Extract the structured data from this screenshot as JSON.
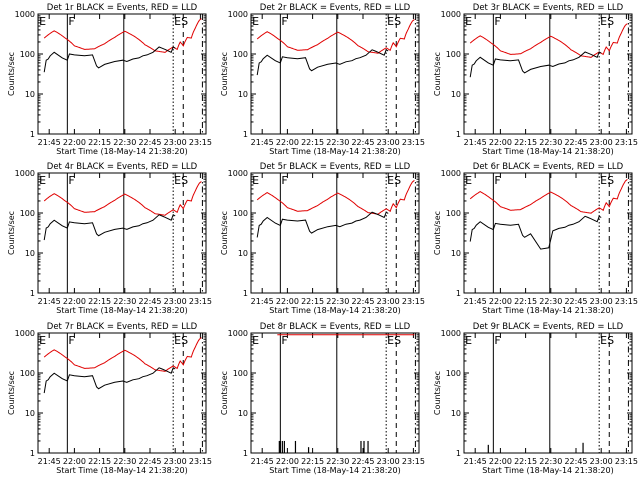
{
  "chart_data": {
    "type": "line",
    "xlabel": "Start Time (18-May-14 21:38:20)",
    "ylabel": "Counts/sec",
    "x_tick_labels": [
      "21:45",
      "22:00",
      "22:15",
      "22:30",
      "22:45",
      "23:00",
      "23:15"
    ],
    "x_ticks_min": [
      21.75,
      22.0,
      22.25,
      22.5,
      22.75,
      23.0,
      23.25
    ],
    "xlim_hours": [
      21.638889,
      23.305556
    ],
    "y_tick_labels": [
      "1",
      "10",
      "100",
      "1000"
    ],
    "y_scale": "log",
    "ylim": [
      1,
      1000
    ],
    "series_labels": {
      "black": "BLACK = Events",
      "red": "RED = LLD"
    },
    "markers": [
      {
        "label": "E",
        "x": 21.64,
        "style": "none"
      },
      {
        "label": "F",
        "x": 21.93,
        "style": "solid"
      },
      {
        "label": "",
        "x": 22.49,
        "style": "solid"
      },
      {
        "label": "ES",
        "x": 22.98,
        "style": "dotted"
      },
      {
        "label": "",
        "x": 23.08,
        "style": "dashed"
      },
      {
        "label": "",
        "x": 23.27,
        "style": "dashdot"
      }
    ],
    "panels": [
      {
        "title": "Det 1r BLACK = Events, RED = LLD",
        "red_scale": 1.0,
        "black_scale": 1.0,
        "black_gap": false,
        "spike_only": false,
        "show_red": true
      },
      {
        "title": "Det 2r BLACK = Events, RED = LLD",
        "red_scale": 0.95,
        "black_scale": 0.85,
        "black_gap": false,
        "spike_only": false,
        "show_red": true
      },
      {
        "title": "Det 3r BLACK = Events, RED = LLD",
        "red_scale": 0.75,
        "black_scale": 0.75,
        "black_gap": false,
        "spike_only": false,
        "show_red": true
      },
      {
        "title": "Det 4r BLACK = Events, RED = LLD",
        "red_scale": 0.8,
        "black_scale": 0.6,
        "black_gap": false,
        "spike_only": false,
        "show_red": true
      },
      {
        "title": "Det 5r BLACK = Events, RED = LLD",
        "red_scale": 0.85,
        "black_scale": 0.7,
        "black_gap": false,
        "spike_only": false,
        "show_red": true
      },
      {
        "title": "Det 6r BLACK = Events, RED = LLD",
        "red_scale": 0.9,
        "black_scale": 0.55,
        "black_gap": true,
        "spike_only": false,
        "show_red": true
      },
      {
        "title": "Det 7r BLACK = Events, RED = LLD",
        "red_scale": 1.0,
        "black_scale": 0.9,
        "black_gap": false,
        "spike_only": false,
        "show_red": true
      },
      {
        "title": "Det 8r BLACK = Events, RED = LLD",
        "red_scale": 1.0,
        "black_scale": 1.0,
        "black_gap": false,
        "spike_only": true,
        "show_red": true
      },
      {
        "title": "Det 9r BLACK = Events, RED = LLD",
        "red_scale": 1.0,
        "black_scale": 1.0,
        "black_gap": false,
        "spike_only": true,
        "show_red": false
      }
    ],
    "red_profile": {
      "x": [
        21.7,
        21.8,
        21.9,
        22.0,
        22.1,
        22.2,
        22.3,
        22.4,
        22.5,
        22.6,
        22.7,
        22.8,
        22.9,
        22.98,
        23.02,
        23.05,
        23.08,
        23.12,
        23.16,
        23.2,
        23.24,
        23.27
      ],
      "y": [
        250,
        380,
        260,
        160,
        130,
        135,
        180,
        260,
        370,
        270,
        170,
        120,
        110,
        150,
        130,
        200,
        160,
        260,
        250,
        450,
        700,
        800
      ]
    },
    "black_profile": {
      "x": [
        21.7,
        21.72,
        21.74,
        21.76,
        21.8,
        21.88,
        21.93,
        21.95,
        22.0,
        22.1,
        22.18,
        22.22,
        22.24,
        22.3,
        22.4,
        22.48,
        22.52,
        22.58,
        22.64,
        22.68,
        22.72,
        22.78,
        22.84,
        22.87,
        22.9,
        22.96,
        22.98,
        23.0
      ],
      "y": [
        35,
        70,
        75,
        90,
        110,
        80,
        70,
        100,
        95,
        90,
        95,
        50,
        45,
        55,
        65,
        70,
        65,
        75,
        80,
        90,
        95,
        110,
        150,
        140,
        130,
        110,
        150,
        140
      ]
    },
    "spikes_8r": [
      {
        "x": 21.92,
        "y": 2
      },
      {
        "x": 21.93,
        "y": 2
      },
      {
        "x": 21.95,
        "y": 2
      },
      {
        "x": 21.97,
        "y": 2
      },
      {
        "x": 22.08,
        "y": 2
      },
      {
        "x": 22.21,
        "y": 1.4
      },
      {
        "x": 22.73,
        "y": 2
      },
      {
        "x": 22.76,
        "y": 2
      },
      {
        "x": 22.8,
        "y": 2
      }
    ],
    "spikes_9r": [
      {
        "x": 21.88,
        "y": 1.6
      },
      {
        "x": 22.82,
        "y": 1.8
      }
    ]
  }
}
